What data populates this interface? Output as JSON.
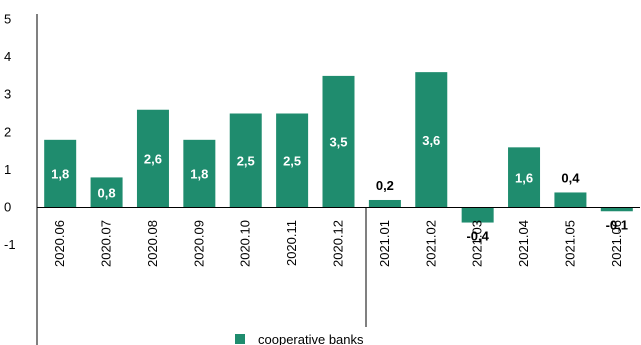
{
  "chart_data": {
    "type": "bar",
    "categories": [
      "2020.06",
      "2020.07",
      "2020.08",
      "2020.09",
      "2020.10",
      "2020.11",
      "2020.12",
      "2021.01",
      "2021.02",
      "2021.03",
      "2021.04",
      "2021.05",
      "2021.06"
    ],
    "series": [
      {
        "name": "cooperative banks",
        "values": [
          1.8,
          0.8,
          2.6,
          1.8,
          2.5,
          2.5,
          3.5,
          0.2,
          3.6,
          -0.4,
          1.6,
          0.4,
          -0.1
        ],
        "labels": [
          "1,8",
          "0,8",
          "2,6",
          "1,8",
          "2,5",
          "2,5",
          "3,5",
          "0,2",
          "3,6",
          "-0,4",
          "1,6",
          "0,4",
          "-0,1"
        ]
      }
    ],
    "y_ticks": [
      "-1",
      "0",
      "1",
      "2",
      "3",
      "4",
      "5"
    ],
    "ylim": [
      -1,
      5
    ],
    "grid": false,
    "legend_position": "bottom-center",
    "colors": {
      "bar": "#1f8c6e",
      "axis": "#000000",
      "label_inside": "#ffffff",
      "label_outside": "#000000"
    }
  }
}
